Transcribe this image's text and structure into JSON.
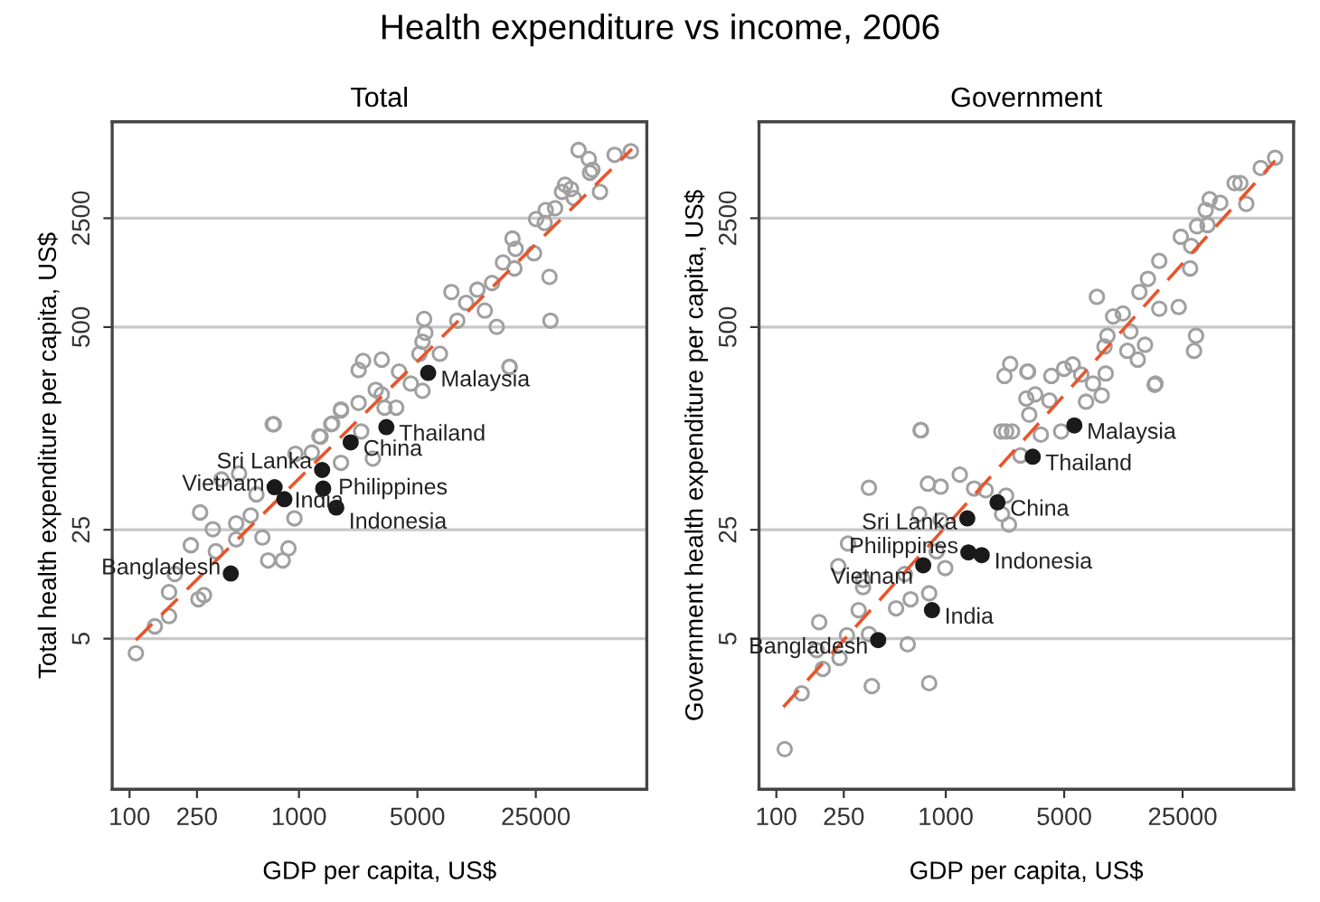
{
  "chart_data": [
    {
      "type": "other",
      "title": "Health expenditure vs income, 2006"
    },
    {
      "type": "scatter",
      "title": "Total",
      "xlabel": "GDP per capita, US$",
      "ylabel": "Total health expenditure per capita, US$",
      "log": "xy",
      "grid": "y",
      "legend": false,
      "xlim": [
        79,
        113000
      ],
      "xticks": [
        100,
        250,
        1000,
        5000,
        25000
      ],
      "ylim": [
        0.54,
        10400
      ],
      "yticks": [
        5,
        25,
        500,
        2500
      ],
      "series": [
        {
          "type": "scatter",
          "marker": "circle",
          "color": "#a0a0a0",
          "x": [
            44700,
            91000,
            73000,
            51400,
            54000,
            52200,
            37200,
            40300,
            35700,
            59800,
            41900,
            28600,
            32500,
            25100,
            28200,
            18200,
            19000,
            24400,
            16000,
            18700,
            30100,
            13800,
            7940,
            11300,
            9700,
            12500,
            30500,
            14700,
            8600,
            5480,
            5570,
            5360,
            6790,
            17500,
            5140,
            2390,
            3080,
            2250,
            3900,
            5360,
            4570,
            2840,
            2250,
            3750,
            1770,
            1570,
            711,
            1340,
            3080,
            700,
            1550,
            1770,
            1320,
            2730,
            953,
            349,
            443,
            561,
            261,
            426,
            310,
            230,
            323,
            426,
            608,
            658,
            802,
            867,
            940,
            171,
            275,
            255,
            141,
            171,
            109,
            185,
            519,
            1190,
            2330,
            3200,
            1770,
            17500
          ],
          "values": [
            6850,
            6730,
            6380,
            6000,
            5120,
            4900,
            4100,
            3850,
            3690,
            3690,
            3370,
            2820,
            2900,
            2470,
            2330,
            1850,
            1590,
            1490,
            1300,
            1190,
            1050,
            960,
            840,
            870,
            716,
            638,
            550,
            502,
            550,
            564,
            460,
            403,
            337,
            277,
            337,
            303,
            309,
            265,
            259,
            195,
            217,
            198,
            163,
            152,
            146,
            120,
            119,
            99,
            185,
            119,
            119,
            148,
            99.5,
            71.6,
            76.9,
            52.6,
            57.4,
            42.2,
            32.3,
            27.5,
            25.2,
            19.9,
            18.2,
            21.7,
            22.3,
            15.9,
            15.9,
            19.0,
            29.6,
            9.95,
            9.52,
            8.95,
            6.0,
            6.98,
            4.03,
            13.0,
            30.9,
            78.3,
            107,
            152,
            67.3,
            278
          ]
        },
        {
          "type": "scatter",
          "marker": "circle",
          "color": "#1a1a1a",
          "x": [
            5790,
            3280,
            2020,
            1370,
            718,
            820,
            1390,
            1660,
            396
          ],
          "values": [
            254,
            114,
            91,
            60.5,
            46.9,
            39.3,
            46.0,
            34.7,
            13.1
          ]
        },
        {
          "type": "line",
          "color": "#e8552a",
          "line_style": "dashed",
          "x": [
            109,
            92500
          ],
          "values": [
            4.9,
            6970
          ]
        }
      ],
      "annotations": [
        {
          "text": "Malaysia",
          "x": 5790,
          "y": 254
        },
        {
          "text": "Thailand",
          "x": 3280,
          "y": 114
        },
        {
          "text": "China",
          "x": 2020,
          "y": 91
        },
        {
          "text": "Sri Lanka",
          "x": 1370,
          "y": 60.5
        },
        {
          "text": "Vietnam",
          "x": 718,
          "y": 46.9
        },
        {
          "text": "India",
          "x": 820,
          "y": 39.3
        },
        {
          "text": "Philippines",
          "x": 1390,
          "y": 46.0
        },
        {
          "text": "Indonesia",
          "x": 1660,
          "y": 34.7
        },
        {
          "text": "Bangladesh",
          "x": 396,
          "y": 13.1
        }
      ]
    },
    {
      "type": "scatter",
      "title": "Government",
      "xlabel": "GDP per capita, US$",
      "ylabel": "Government health expenditure per capita, US$",
      "log": "xy",
      "grid": "y",
      "legend": false,
      "xlim": [
        79,
        113000
      ],
      "xticks": [
        100,
        250,
        1000,
        5000,
        25000
      ],
      "ylim": [
        0.54,
        10400
      ],
      "yticks": [
        5,
        25,
        500,
        2500
      ],
      "series": [
        {
          "type": "scatter",
          "marker": "circle",
          "color": "#a0a0a0",
          "x": [
            87900,
            72300,
            50700,
            54800,
            59400,
            36100,
            41700,
            34200,
            30400,
            35100,
            24400,
            28100,
            18200,
            27700,
            15600,
            13900,
            18200,
            23700,
            7800,
            9730,
            11100,
            12300,
            9000,
            8650,
            15000,
            30000,
            29200,
            11800,
            13600,
            17300,
            5610,
            4990,
            4200,
            8790,
            7400,
            8320,
            6730,
            2400,
            2220,
            3060,
            3370,
            4090,
            2990,
            3110,
            2460,
            2130,
            3640,
            4800,
            710,
            714,
            352,
            785,
            933,
            1210,
            1470,
            1720,
            2150,
            2360,
            697,
            933,
            265,
            883,
            993,
            232,
            325,
            325,
            573,
            509,
            620,
            798,
            306,
            179,
            261,
            352,
            596,
            173,
            236,
            188,
            141,
            366,
            798,
            112,
            2270,
            2760,
            2270,
            6310,
            17100,
            3030
          ],
          "values": [
            6110,
            5250,
            4200,
            4200,
            3090,
            3310,
            3140,
            2820,
            2220,
            2260,
            1900,
            1660,
            1330,
            1190,
            1020,
            840,
            656,
            673,
            782,
            585,
            611,
            468,
            440,
            375,
            385,
            440,
            352,
            352,
            309,
            217,
            288,
            270,
            243,
            252,
            217,
            182,
            166,
            290,
            243,
            259,
            185,
            169,
            174,
            137,
            107,
            107,
            102,
            107,
            109,
            109,
            46.5,
            49.4,
            47.3,
            56.5,
            46.0,
            44.9,
            31.5,
            27.0,
            31.5,
            28.8,
            20.4,
            18.2,
            14.2,
            14.6,
            11.9,
            10.7,
            13.0,
            7.83,
            8.95,
            9.77,
            7.62,
            6.38,
            5.26,
            5.35,
            4.6,
            4.22,
            3.76,
            3.2,
            2.23,
            2.48,
            2.59,
            0.977,
            41.4,
            75.0,
            107,
            248,
            213,
            259
          ]
        },
        {
          "type": "scatter",
          "marker": "circle",
          "color": "#1a1a1a",
          "x": [
            5740,
            3260,
            2020,
            1340,
            736,
            829,
            1360,
            1630,
            399
          ],
          "values": [
            117,
            73.6,
            37.5,
            29.6,
            14.8,
            7.62,
            17.9,
            17.2,
            4.9
          ]
        },
        {
          "type": "line",
          "color": "#e8552a",
          "line_style": "dashed",
          "x": [
            110,
            87900
          ],
          "values": [
            1.82,
            5850
          ]
        }
      ],
      "annotations": [
        {
          "text": "Malaysia",
          "x": 5740,
          "y": 117
        },
        {
          "text": "Thailand",
          "x": 3260,
          "y": 73.6
        },
        {
          "text": "China",
          "x": 2020,
          "y": 37.5
        },
        {
          "text": "Sri Lanka",
          "x": 1340,
          "y": 29.6
        },
        {
          "text": "Vietnam",
          "x": 736,
          "y": 14.8
        },
        {
          "text": "India",
          "x": 829,
          "y": 7.62
        },
        {
          "text": "Philippines",
          "x": 1360,
          "y": 17.9
        },
        {
          "text": "Indonesia",
          "x": 1630,
          "y": 17.2
        },
        {
          "text": "Bangladesh",
          "x": 399,
          "y": 4.9
        }
      ]
    }
  ]
}
